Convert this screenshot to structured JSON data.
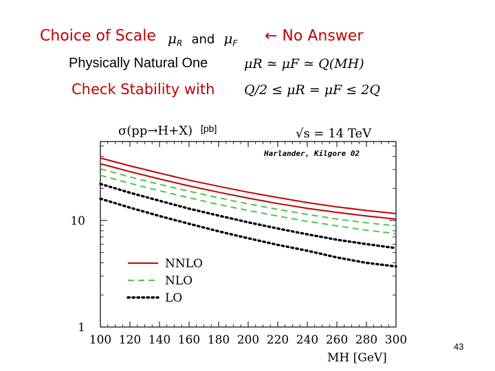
{
  "slide": {
    "choice_label": "Choice of Scale",
    "mu_r": "μ",
    "mu_r_sub": "R",
    "and_word": "and",
    "mu_f": "μ",
    "mu_f_sub": "F",
    "no_answer": "← No Answer",
    "natural_label": "Physically Natural One",
    "natural_formula": "μR ≃ μF ≃ Q(MH)",
    "stability_label": "Check Stability with",
    "stability_formula": "Q/2 ≤ μR = μF ≤ 2Q",
    "page_number": "43"
  },
  "colors": {
    "red": "#c00000",
    "nlo": "#4cc44c",
    "lo": "#000000"
  },
  "chart_data": {
    "type": "line",
    "title": "σ(pp→H+X)",
    "unit_label": "[pb]",
    "energy_label": "√s = 14 TeV",
    "annotation": "Harlander, Kilgore 02",
    "xlabel": "MH [GeV]",
    "ylabel": "",
    "y_scale": "log",
    "xlim": [
      100,
      300
    ],
    "ylim": [
      1,
      55
    ],
    "xticks": [
      100,
      120,
      140,
      160,
      180,
      200,
      220,
      240,
      260,
      280,
      300
    ],
    "yticks": [
      {
        "value": 1,
        "label": "1"
      },
      {
        "value": 10,
        "label": "10"
      }
    ],
    "x": [
      100,
      120,
      140,
      160,
      180,
      200,
      220,
      240,
      260,
      280,
      300
    ],
    "series": [
      {
        "name": "NNLO",
        "band": "upper",
        "style": "solid",
        "color": "#c00000",
        "values": [
          38.5,
          32.5,
          27.8,
          23.9,
          20.9,
          18.4,
          16.4,
          14.7,
          13.4,
          12.4,
          11.6
        ]
      },
      {
        "name": "NNLO",
        "band": "lower",
        "style": "solid",
        "color": "#c00000",
        "values": [
          34.0,
          28.7,
          24.5,
          21.1,
          18.4,
          16.2,
          14.4,
          13.0,
          11.9,
          11.0,
          10.3
        ]
      },
      {
        "name": "NLO",
        "band": "upper",
        "style": "dashed",
        "color": "#4cc44c",
        "values": [
          30.5,
          25.6,
          21.8,
          18.8,
          16.3,
          14.3,
          12.7,
          11.4,
          10.3,
          9.5,
          8.9
        ]
      },
      {
        "name": "NLO",
        "band": "lower",
        "style": "dashed",
        "color": "#4cc44c",
        "values": [
          26.5,
          22.3,
          19.0,
          16.3,
          14.1,
          12.4,
          11.0,
          9.8,
          8.9,
          8.1,
          7.5
        ]
      },
      {
        "name": "LO",
        "band": "upper",
        "style": "dotted",
        "color": "#000000",
        "values": [
          22.0,
          18.2,
          15.3,
          12.9,
          11.1,
          9.6,
          8.4,
          7.4,
          6.6,
          6.0,
          5.5
        ]
      },
      {
        "name": "LO",
        "band": "lower",
        "style": "dotted",
        "color": "#000000",
        "values": [
          16.0,
          13.2,
          11.0,
          9.3,
          7.9,
          6.8,
          5.9,
          5.2,
          4.5,
          4.0,
          3.7
        ]
      }
    ],
    "legend": [
      {
        "label": "NNLO",
        "style": "solid",
        "color": "#c00000"
      },
      {
        "label": "NLO",
        "style": "dashed",
        "color": "#4cc44c"
      },
      {
        "label": "LO",
        "style": "dotted",
        "color": "#000000"
      }
    ],
    "legend_position": "bottom-left"
  }
}
